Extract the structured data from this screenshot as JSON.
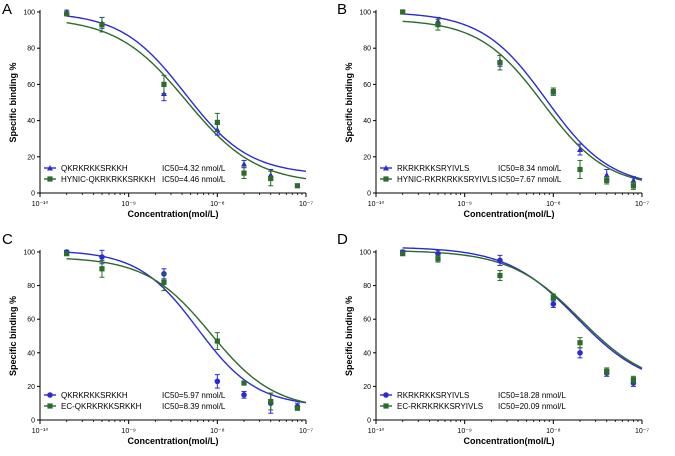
{
  "colors": {
    "blue": "#2b2bd6",
    "green": "#2b6b2b",
    "axis": "#000000"
  },
  "chart_data": [
    {
      "type": "scatter",
      "panel": "A",
      "xlabel": "Concentration(mol/L)",
      "ylabel": "Specific binding %",
      "xscale": "log",
      "xlim": [
        1e-10,
        1e-07
      ],
      "ylim": [
        0,
        100
      ],
      "xticks": [
        "10⁻¹⁰",
        "10⁻⁹",
        "10⁻⁸",
        "10⁻⁷"
      ],
      "yticks": [
        "0",
        "20",
        "40",
        "60",
        "80",
        "100"
      ],
      "series": [
        {
          "name": "QKRKRKKSRKKH",
          "ic50_label": "IC50=4.32 nmol/L",
          "color": "blue",
          "marker": "triangle",
          "fit": {
            "top": 100,
            "bottom": 10,
            "ic50": 4.32e-09,
            "hill": 1.2
          },
          "points": [
            {
              "x": 2e-10,
              "y": 100,
              "err": 1
            },
            {
              "x": 5e-10,
              "y": 94,
              "err": 3
            },
            {
              "x": 2.5e-09,
              "y": 55,
              "err": 4
            },
            {
              "x": 1e-08,
              "y": 35,
              "err": 3
            },
            {
              "x": 2e-08,
              "y": 16,
              "err": 2
            },
            {
              "x": 4e-08,
              "y": 10,
              "err": 3
            }
          ]
        },
        {
          "name": "HYNIC-QKRKRKKSRKKH",
          "ic50_label": "IC50=4.46 nmol/L",
          "color": "green",
          "marker": "square",
          "fit": {
            "top": 97,
            "bottom": 5,
            "ic50": 4.46e-09,
            "hill": 1.1
          },
          "points": [
            {
              "x": 2e-10,
              "y": 99,
              "err": 1
            },
            {
              "x": 5e-10,
              "y": 93,
              "err": 4
            },
            {
              "x": 2.5e-09,
              "y": 60,
              "err": 5
            },
            {
              "x": 1e-08,
              "y": 39,
              "err": 5
            },
            {
              "x": 2e-08,
              "y": 11,
              "err": 3
            },
            {
              "x": 4e-08,
              "y": 8,
              "err": 4
            },
            {
              "x": 8e-08,
              "y": 4,
              "err": 0
            }
          ]
        }
      ]
    },
    {
      "type": "scatter",
      "panel": "B",
      "xlabel": "Concentration(mol/L)",
      "ylabel": "Specific binding %",
      "xscale": "log",
      "xlim": [
        1e-10,
        1e-07
      ],
      "ylim": [
        0,
        100
      ],
      "xticks": [
        "10⁻¹⁰",
        "10⁻⁹",
        "10⁻⁸",
        "10⁻⁷"
      ],
      "yticks": [
        "0",
        "20",
        "40",
        "60",
        "80",
        "100"
      ],
      "series": [
        {
          "name": "RKRKRKKSRYIVLS",
          "ic50_label": "IC50=8.34 nmol/L",
          "color": "blue",
          "marker": "triangle",
          "fit": {
            "top": 100,
            "bottom": 3,
            "ic50": 8.34e-09,
            "hill": 1.2
          },
          "points": [
            {
              "x": 2e-10,
              "y": 100,
              "err": 1
            },
            {
              "x": 5e-10,
              "y": 95,
              "err": 2
            },
            {
              "x": 2.5e-09,
              "y": 73,
              "err": 3
            },
            {
              "x": 1e-08,
              "y": 56,
              "err": 2
            },
            {
              "x": 2e-08,
              "y": 24,
              "err": 3
            },
            {
              "x": 4e-08,
              "y": 10,
              "err": 3
            },
            {
              "x": 8e-08,
              "y": 7,
              "err": 2
            }
          ]
        },
        {
          "name": "HYNIC-RKRKRKKSRYIVLS",
          "ic50_label": "IC50=7.67 nmol/L",
          "color": "green",
          "marker": "square",
          "fit": {
            "top": 96,
            "bottom": 3,
            "ic50": 7.67e-09,
            "hill": 1.2
          },
          "points": [
            {
              "x": 2e-10,
              "y": 100,
              "err": 1
            },
            {
              "x": 5e-10,
              "y": 93,
              "err": 3
            },
            {
              "x": 2.5e-09,
              "y": 72,
              "err": 4
            },
            {
              "x": 1e-08,
              "y": 56,
              "err": 2
            },
            {
              "x": 2e-08,
              "y": 13,
              "err": 5
            },
            {
              "x": 4e-08,
              "y": 7,
              "err": 2
            },
            {
              "x": 8e-08,
              "y": 4,
              "err": 2
            }
          ]
        }
      ]
    },
    {
      "type": "scatter",
      "panel": "C",
      "xlabel": "Concentration(mol/L)",
      "ylabel": "Specific binding %",
      "xscale": "log",
      "xlim": [
        1e-10,
        1e-07
      ],
      "ylim": [
        0,
        100
      ],
      "xticks": [
        "10⁻¹⁰",
        "10⁻⁹",
        "10⁻⁸",
        "10⁻⁷"
      ],
      "yticks": [
        "0",
        "20",
        "40",
        "60",
        "80",
        "100"
      ],
      "series": [
        {
          "name": "QKRKRKKSRKKH",
          "ic50_label": "IC50=5.97 nmol/L",
          "color": "blue",
          "marker": "circle",
          "fit": {
            "top": 101,
            "bottom": 8,
            "ic50": 5.97e-09,
            "hill": 1.3
          },
          "points": [
            {
              "x": 2e-10,
              "y": 100,
              "err": 1
            },
            {
              "x": 5e-10,
              "y": 97,
              "err": 4
            },
            {
              "x": 2.5e-09,
              "y": 87,
              "err": 3
            },
            {
              "x": 1e-08,
              "y": 23,
              "err": 4
            },
            {
              "x": 2e-08,
              "y": 15,
              "err": 2
            },
            {
              "x": 4e-08,
              "y": 10,
              "err": 6
            },
            {
              "x": 8e-08,
              "y": 8,
              "err": 2
            }
          ]
        },
        {
          "name": "EC-QKRKRKKSRKKH",
          "ic50_label": "IC50=8.39 nmol/L",
          "color": "green",
          "marker": "square",
          "fit": {
            "top": 97,
            "bottom": 6,
            "ic50": 8.39e-09,
            "hill": 1.2
          },
          "points": [
            {
              "x": 2e-10,
              "y": 99,
              "err": 1
            },
            {
              "x": 5e-10,
              "y": 90,
              "err": 5
            },
            {
              "x": 2.5e-09,
              "y": 82,
              "err": 5
            },
            {
              "x": 1e-08,
              "y": 47,
              "err": 5
            },
            {
              "x": 2e-08,
              "y": 22,
              "err": 1
            },
            {
              "x": 4e-08,
              "y": 11,
              "err": 5
            },
            {
              "x": 8e-08,
              "y": 7,
              "err": 1
            }
          ]
        }
      ]
    },
    {
      "type": "scatter",
      "panel": "D",
      "xlabel": "Concentration(mol/L)",
      "ylabel": "Specific binding %",
      "xscale": "log",
      "xlim": [
        1e-10,
        1e-07
      ],
      "ylim": [
        0,
        100
      ],
      "xticks": [
        "10⁻¹⁰",
        "10⁻⁹",
        "10⁻⁸",
        "10⁻⁷"
      ],
      "yticks": [
        "0",
        "20",
        "40",
        "60",
        "80",
        "100"
      ],
      "series": [
        {
          "name": "RKRKRKKSRYIVLS",
          "ic50_label": "IC50=18.28 nmol/L",
          "color": "blue",
          "marker": "circle",
          "fit": {
            "top": 103,
            "bottom": 19,
            "ic50": 1.828e-08,
            "hill": 1.1
          },
          "points": [
            {
              "x": 2e-10,
              "y": 100,
              "err": 1
            },
            {
              "x": 5e-10,
              "y": 99,
              "err": 2
            },
            {
              "x": 2.5e-09,
              "y": 95,
              "err": 3
            },
            {
              "x": 1e-08,
              "y": 69,
              "err": 2
            },
            {
              "x": 2e-08,
              "y": 40,
              "err": 3
            },
            {
              "x": 4e-08,
              "y": 28,
              "err": 2
            },
            {
              "x": 8e-08,
              "y": 22,
              "err": 2
            }
          ]
        },
        {
          "name": "EC-RKRKRKKSRYIVLS",
          "ic50_label": "IC50=20.09 nmol/L",
          "color": "green",
          "marker": "square",
          "fit": {
            "top": 101,
            "bottom": 19,
            "ic50": 2.009e-08,
            "hill": 1.1
          },
          "points": [
            {
              "x": 2e-10,
              "y": 99,
              "err": 1
            },
            {
              "x": 5e-10,
              "y": 96,
              "err": 2
            },
            {
              "x": 2.5e-09,
              "y": 86,
              "err": 3
            },
            {
              "x": 1e-08,
              "y": 73,
              "err": 2
            },
            {
              "x": 2e-08,
              "y": 46,
              "err": 3
            },
            {
              "x": 4e-08,
              "y": 29,
              "err": 2
            },
            {
              "x": 8e-08,
              "y": 24,
              "err": 2
            }
          ]
        }
      ]
    }
  ]
}
